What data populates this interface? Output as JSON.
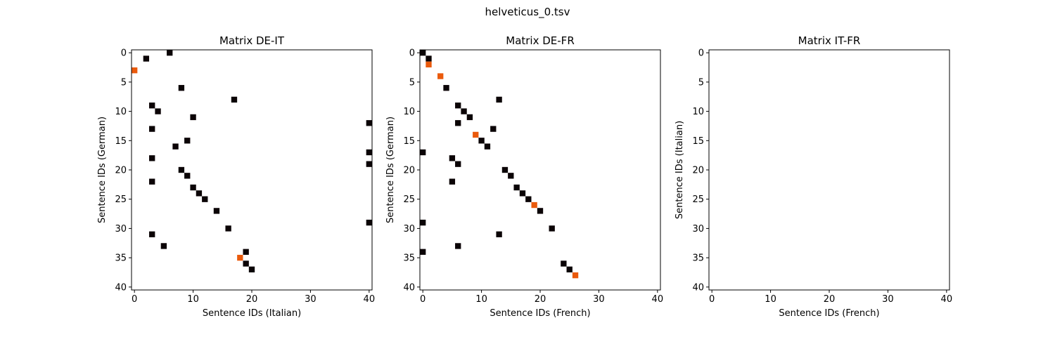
{
  "figure": {
    "title": "helveticus_0.tsv"
  },
  "colors": {
    "black_cell": "#0b0406",
    "orange_cell": "#ea5a0c",
    "frame": "#000000"
  },
  "chart_data": [
    {
      "type": "heatmap",
      "title": "Matrix DE-IT",
      "xlabel": "Sentence IDs (Italian)",
      "ylabel": "Sentence IDs (German)",
      "xlim": [
        -0.5,
        40.5
      ],
      "ylim": [
        40.5,
        -0.5
      ],
      "xticks": [
        0,
        10,
        20,
        30,
        40
      ],
      "yticks": [
        0,
        5,
        10,
        15,
        20,
        25,
        30,
        35,
        40
      ],
      "grid": false,
      "cells": [
        {
          "x": 6,
          "y": 0,
          "c": "black"
        },
        {
          "x": 2,
          "y": 1,
          "c": "black"
        },
        {
          "x": 0,
          "y": 3,
          "c": "orange"
        },
        {
          "x": 8,
          "y": 6,
          "c": "black"
        },
        {
          "x": 17,
          "y": 8,
          "c": "black"
        },
        {
          "x": 3,
          "y": 9,
          "c": "black"
        },
        {
          "x": 4,
          "y": 10,
          "c": "black"
        },
        {
          "x": 10,
          "y": 11,
          "c": "black"
        },
        {
          "x": 40,
          "y": 12,
          "c": "black"
        },
        {
          "x": 3,
          "y": 13,
          "c": "black"
        },
        {
          "x": 9,
          "y": 15,
          "c": "black"
        },
        {
          "x": 7,
          "y": 16,
          "c": "black"
        },
        {
          "x": 40,
          "y": 17,
          "c": "black"
        },
        {
          "x": 3,
          "y": 18,
          "c": "black"
        },
        {
          "x": 40,
          "y": 19,
          "c": "black"
        },
        {
          "x": 8,
          "y": 20,
          "c": "black"
        },
        {
          "x": 9,
          "y": 21,
          "c": "black"
        },
        {
          "x": 3,
          "y": 22,
          "c": "black"
        },
        {
          "x": 10,
          "y": 23,
          "c": "black"
        },
        {
          "x": 11,
          "y": 24,
          "c": "black"
        },
        {
          "x": 12,
          "y": 25,
          "c": "black"
        },
        {
          "x": 14,
          "y": 27,
          "c": "black"
        },
        {
          "x": 40,
          "y": 29,
          "c": "black"
        },
        {
          "x": 16,
          "y": 30,
          "c": "black"
        },
        {
          "x": 3,
          "y": 31,
          "c": "black"
        },
        {
          "x": 5,
          "y": 33,
          "c": "black"
        },
        {
          "x": 19,
          "y": 34,
          "c": "black"
        },
        {
          "x": 18,
          "y": 35,
          "c": "orange"
        },
        {
          "x": 19,
          "y": 36,
          "c": "black"
        },
        {
          "x": 20,
          "y": 37,
          "c": "black"
        }
      ]
    },
    {
      "type": "heatmap",
      "title": "Matrix DE-FR",
      "xlabel": "Sentence IDs (French)",
      "ylabel": "Sentence IDs (German)",
      "xlim": [
        -0.5,
        40.5
      ],
      "ylim": [
        40.5,
        -0.5
      ],
      "xticks": [
        0,
        10,
        20,
        30,
        40
      ],
      "yticks": [
        0,
        5,
        10,
        15,
        20,
        25,
        30,
        35,
        40
      ],
      "grid": false,
      "cells": [
        {
          "x": 0,
          "y": 0,
          "c": "black"
        },
        {
          "x": 1,
          "y": 1,
          "c": "black"
        },
        {
          "x": 1,
          "y": 2,
          "c": "orange"
        },
        {
          "x": 3,
          "y": 4,
          "c": "orange"
        },
        {
          "x": 4,
          "y": 6,
          "c": "black"
        },
        {
          "x": 13,
          "y": 8,
          "c": "black"
        },
        {
          "x": 6,
          "y": 9,
          "c": "black"
        },
        {
          "x": 7,
          "y": 10,
          "c": "black"
        },
        {
          "x": 8,
          "y": 11,
          "c": "black"
        },
        {
          "x": 6,
          "y": 12,
          "c": "black"
        },
        {
          "x": 12,
          "y": 13,
          "c": "black"
        },
        {
          "x": 9,
          "y": 14,
          "c": "orange"
        },
        {
          "x": 10,
          "y": 15,
          "c": "black"
        },
        {
          "x": 11,
          "y": 16,
          "c": "black"
        },
        {
          "x": 0,
          "y": 17,
          "c": "black"
        },
        {
          "x": 5,
          "y": 18,
          "c": "black"
        },
        {
          "x": 6,
          "y": 19,
          "c": "black"
        },
        {
          "x": 14,
          "y": 20,
          "c": "black"
        },
        {
          "x": 15,
          "y": 21,
          "c": "black"
        },
        {
          "x": 5,
          "y": 22,
          "c": "black"
        },
        {
          "x": 16,
          "y": 23,
          "c": "black"
        },
        {
          "x": 17,
          "y": 24,
          "c": "black"
        },
        {
          "x": 18,
          "y": 25,
          "c": "black"
        },
        {
          "x": 19,
          "y": 26,
          "c": "orange"
        },
        {
          "x": 20,
          "y": 27,
          "c": "black"
        },
        {
          "x": 0,
          "y": 29,
          "c": "black"
        },
        {
          "x": 22,
          "y": 30,
          "c": "black"
        },
        {
          "x": 13,
          "y": 31,
          "c": "black"
        },
        {
          "x": 6,
          "y": 33,
          "c": "black"
        },
        {
          "x": 0,
          "y": 34,
          "c": "black"
        },
        {
          "x": 24,
          "y": 36,
          "c": "black"
        },
        {
          "x": 25,
          "y": 37,
          "c": "black"
        },
        {
          "x": 26,
          "y": 38,
          "c": "orange"
        }
      ]
    },
    {
      "type": "heatmap",
      "title": "Matrix IT-FR",
      "xlabel": "Sentence IDs (French)",
      "ylabel": "Sentence IDs (Italian)",
      "xlim": [
        -0.5,
        40.5
      ],
      "ylim": [
        40.5,
        -0.5
      ],
      "xticks": [
        0,
        10,
        20,
        30,
        40
      ],
      "yticks": [
        0,
        5,
        10,
        15,
        20,
        25,
        30,
        35,
        40
      ],
      "grid": false,
      "cells": []
    }
  ]
}
